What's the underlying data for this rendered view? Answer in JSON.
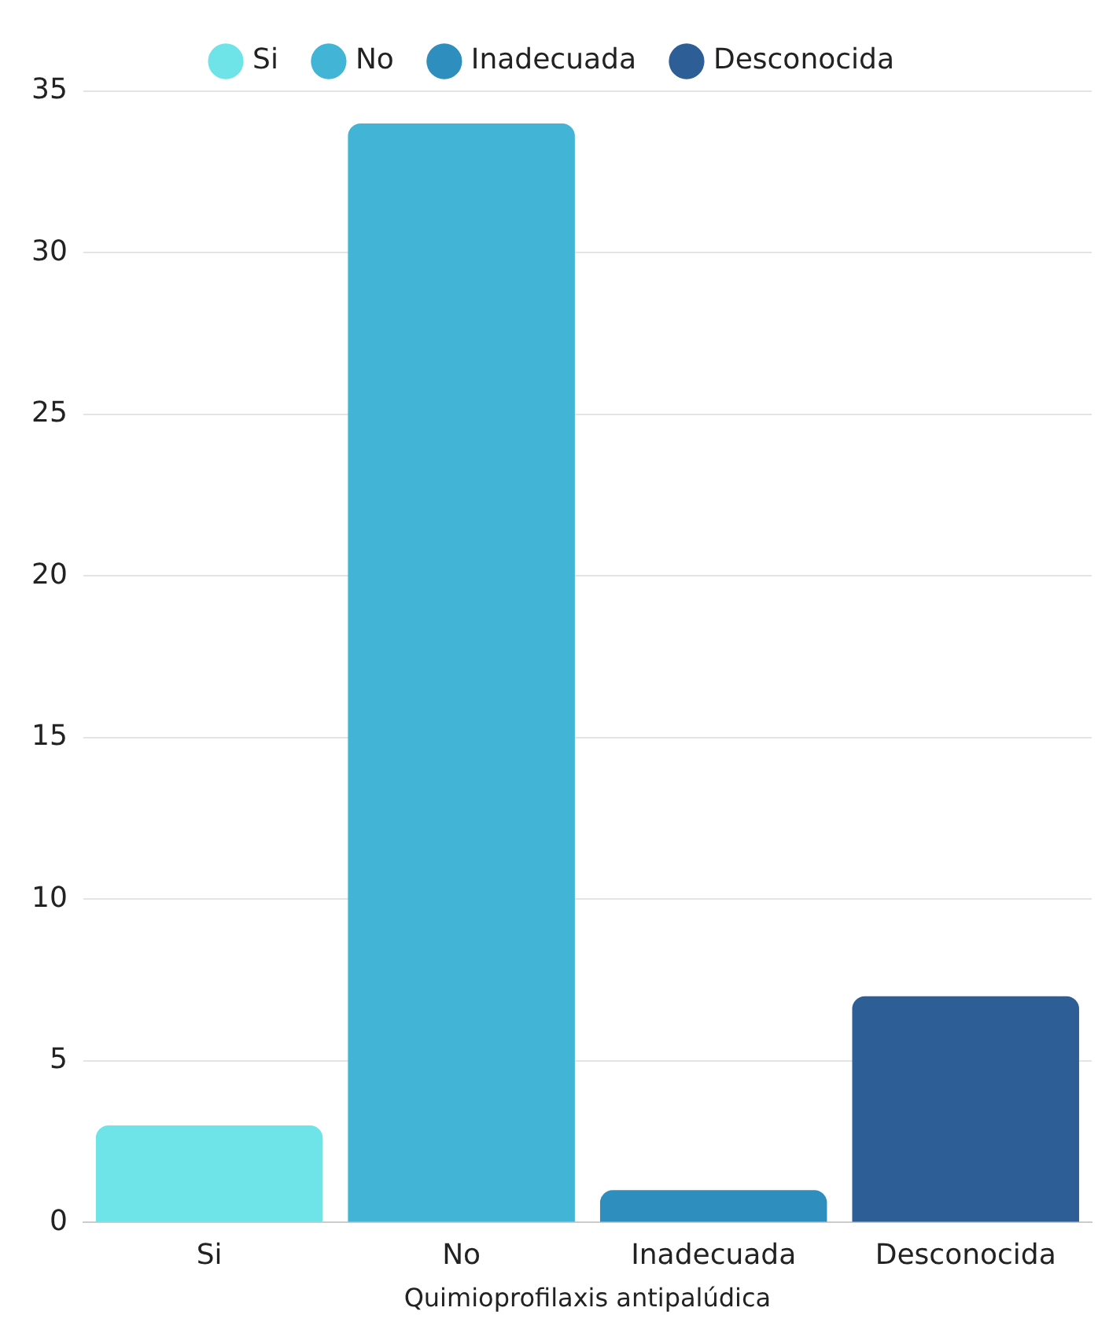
{
  "chart_data": {
    "type": "bar",
    "xlabel": "Quimioprofilaxis antipalúdica",
    "categories": [
      "Si",
      "No",
      "Inadecuada",
      "Desconocida"
    ],
    "series": [
      {
        "name": "Si",
        "color": "#6ee3e8",
        "values": [
          3,
          null,
          null,
          null
        ]
      },
      {
        "name": "No",
        "color": "#42b5d6",
        "values": [
          null,
          34,
          null,
          null
        ]
      },
      {
        "name": "Inadecuada",
        "color": "#2e8fbf",
        "values": [
          null,
          null,
          1,
          null
        ]
      },
      {
        "name": "Desconocida",
        "color": "#2d5e96",
        "values": [
          null,
          null,
          null,
          7
        ]
      }
    ],
    "ylim": [
      0,
      35
    ],
    "yticks": [
      0,
      5,
      10,
      15,
      20,
      25,
      30,
      35
    ],
    "grid": "y",
    "legend": "top"
  }
}
